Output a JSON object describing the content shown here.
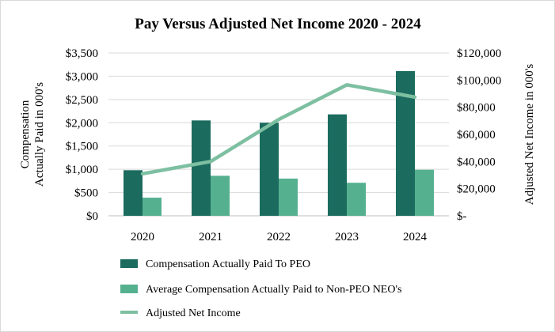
{
  "chart_data": {
    "type": "bar",
    "title": "Pay Versus Adjusted Net Income 2020 - 2024",
    "categories": [
      "2020",
      "2021",
      "2022",
      "2023",
      "2024"
    ],
    "y_left": {
      "label_lines": [
        "Compensation",
        "Actually Paid in 000's"
      ],
      "lim": [
        0,
        3500
      ],
      "ticks": [
        0,
        500,
        1000,
        1500,
        2000,
        2500,
        3000,
        3500
      ],
      "tick_labels": [
        "$0",
        "$500",
        "$1,000",
        "$1,500",
        "$2,000",
        "$2,500",
        "$3,000",
        "$3,500"
      ]
    },
    "y_right": {
      "label": "Adjusted Net Income in 000's",
      "lim": [
        0,
        120000
      ],
      "ticks": [
        0,
        20000,
        40000,
        60000,
        80000,
        100000,
        120000
      ],
      "tick_labels": [
        "$-",
        "$20,000",
        "$40,000",
        "$60,000",
        "$80,000",
        "$100,000",
        "$120,000"
      ]
    },
    "grid": true,
    "legend_position": "bottom",
    "series": [
      {
        "name": "Compensation Actually Paid To PEO",
        "type": "bar",
        "axis": "left",
        "color": "#1b6b5e",
        "values": [
          980,
          2050,
          2000,
          2180,
          3110
        ]
      },
      {
        "name": "Average Compensation Actually Paid to Non-PEO NEO's",
        "type": "bar",
        "axis": "left",
        "color": "#55b08f",
        "values": [
          390,
          860,
          800,
          710,
          990
        ]
      },
      {
        "name": "Adjusted Net Income",
        "type": "line",
        "axis": "right",
        "color": "#7dbfa1",
        "values": [
          31000,
          40000,
          71000,
          96500,
          87500
        ]
      }
    ]
  }
}
